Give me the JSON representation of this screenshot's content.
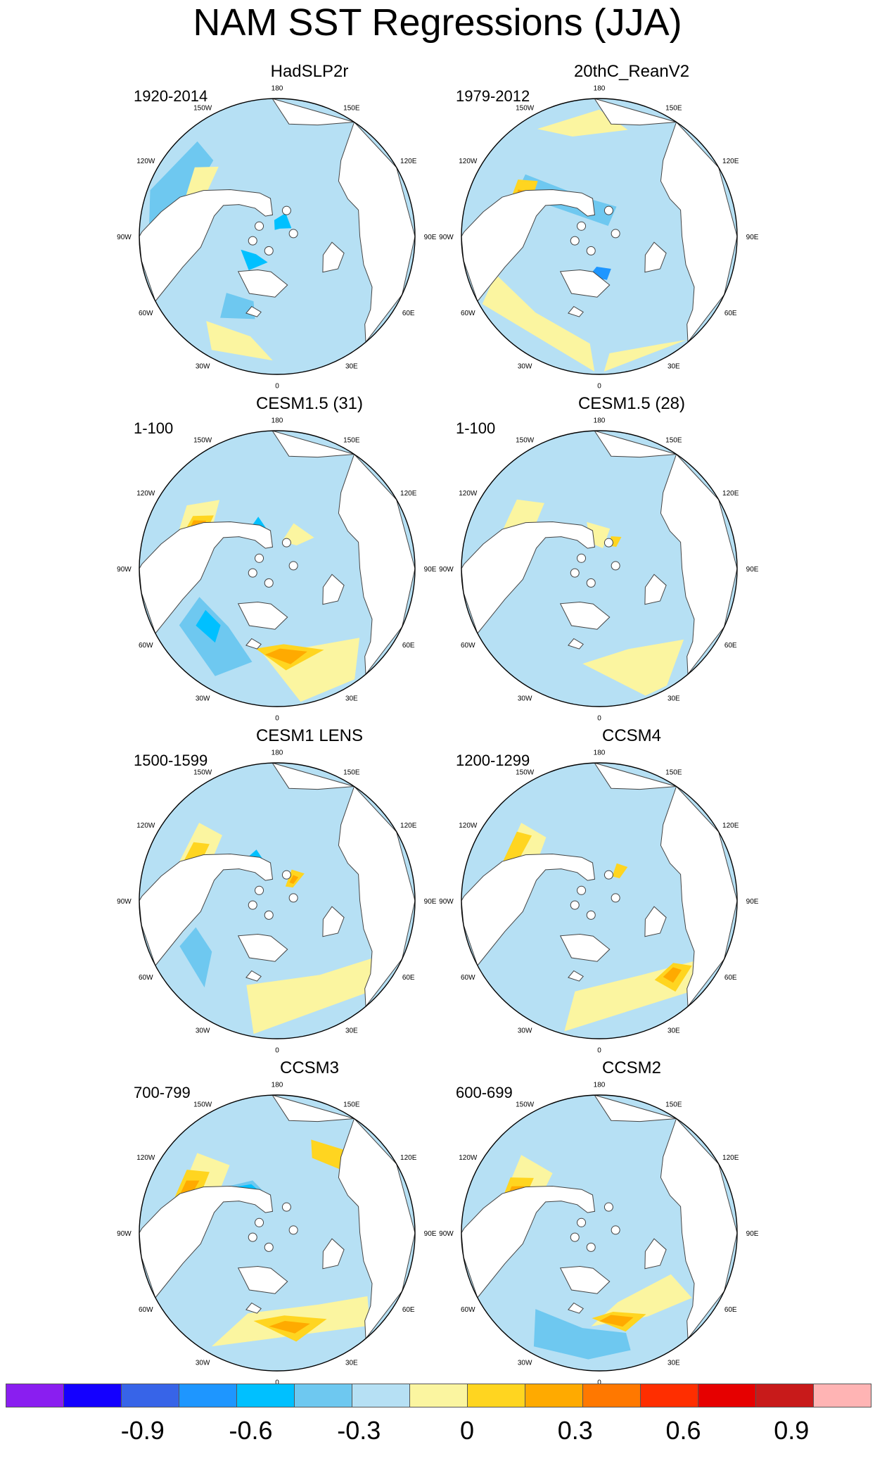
{
  "title": "NAM SST Regressions (JJA)",
  "longitude_labels": {
    "top": "180",
    "bottom": "0",
    "upper_left": "150W",
    "upper_right": "150E",
    "left_upper": "120W",
    "right_upper": "120E",
    "left": "90W",
    "right": "90E",
    "left_lower": "60W",
    "right_lower": "60E",
    "lower_left": "30W",
    "lower_right": "30E"
  },
  "panels": [
    {
      "title": "HadSLP2r",
      "period": "1920-2014",
      "pattern": "had"
    },
    {
      "title": "20thC_ReanV2",
      "period": "1979-2012",
      "pattern": "rean"
    },
    {
      "title": "CESM1.5 (31)",
      "period": "1-100",
      "pattern": "cesm31"
    },
    {
      "title": "CESM1.5 (28)",
      "period": "1-100",
      "pattern": "cesm28"
    },
    {
      "title": "CESM1 LENS",
      "period": "1500-1599",
      "pattern": "lens"
    },
    {
      "title": "CCSM4",
      "period": "1200-1299",
      "pattern": "ccsm4"
    },
    {
      "title": "CCSM3",
      "period": "700-799",
      "pattern": "ccsm3"
    },
    {
      "title": "CCSM2",
      "period": "600-699",
      "pattern": "ccsm2"
    }
  ],
  "colorbar": {
    "colors": [
      "#8a1ef0",
      "#1400ff",
      "#3764e8",
      "#1e96ff",
      "#00c0ff",
      "#6ec8f0",
      "#b6e0f4",
      "#fbf5a0",
      "#ffd520",
      "#ffaa00",
      "#ff7800",
      "#ff2e00",
      "#e60000",
      "#c81a1a",
      "#ffb4b4"
    ],
    "tick_labels": [
      "-0.9",
      "-0.6",
      "-0.3",
      "0",
      "0.3",
      "0.6",
      "0.9"
    ],
    "tick_values": [
      -0.9,
      -0.6,
      -0.3,
      0,
      0.3,
      0.6,
      0.9
    ],
    "range": [
      -1.2,
      1.2
    ]
  }
}
